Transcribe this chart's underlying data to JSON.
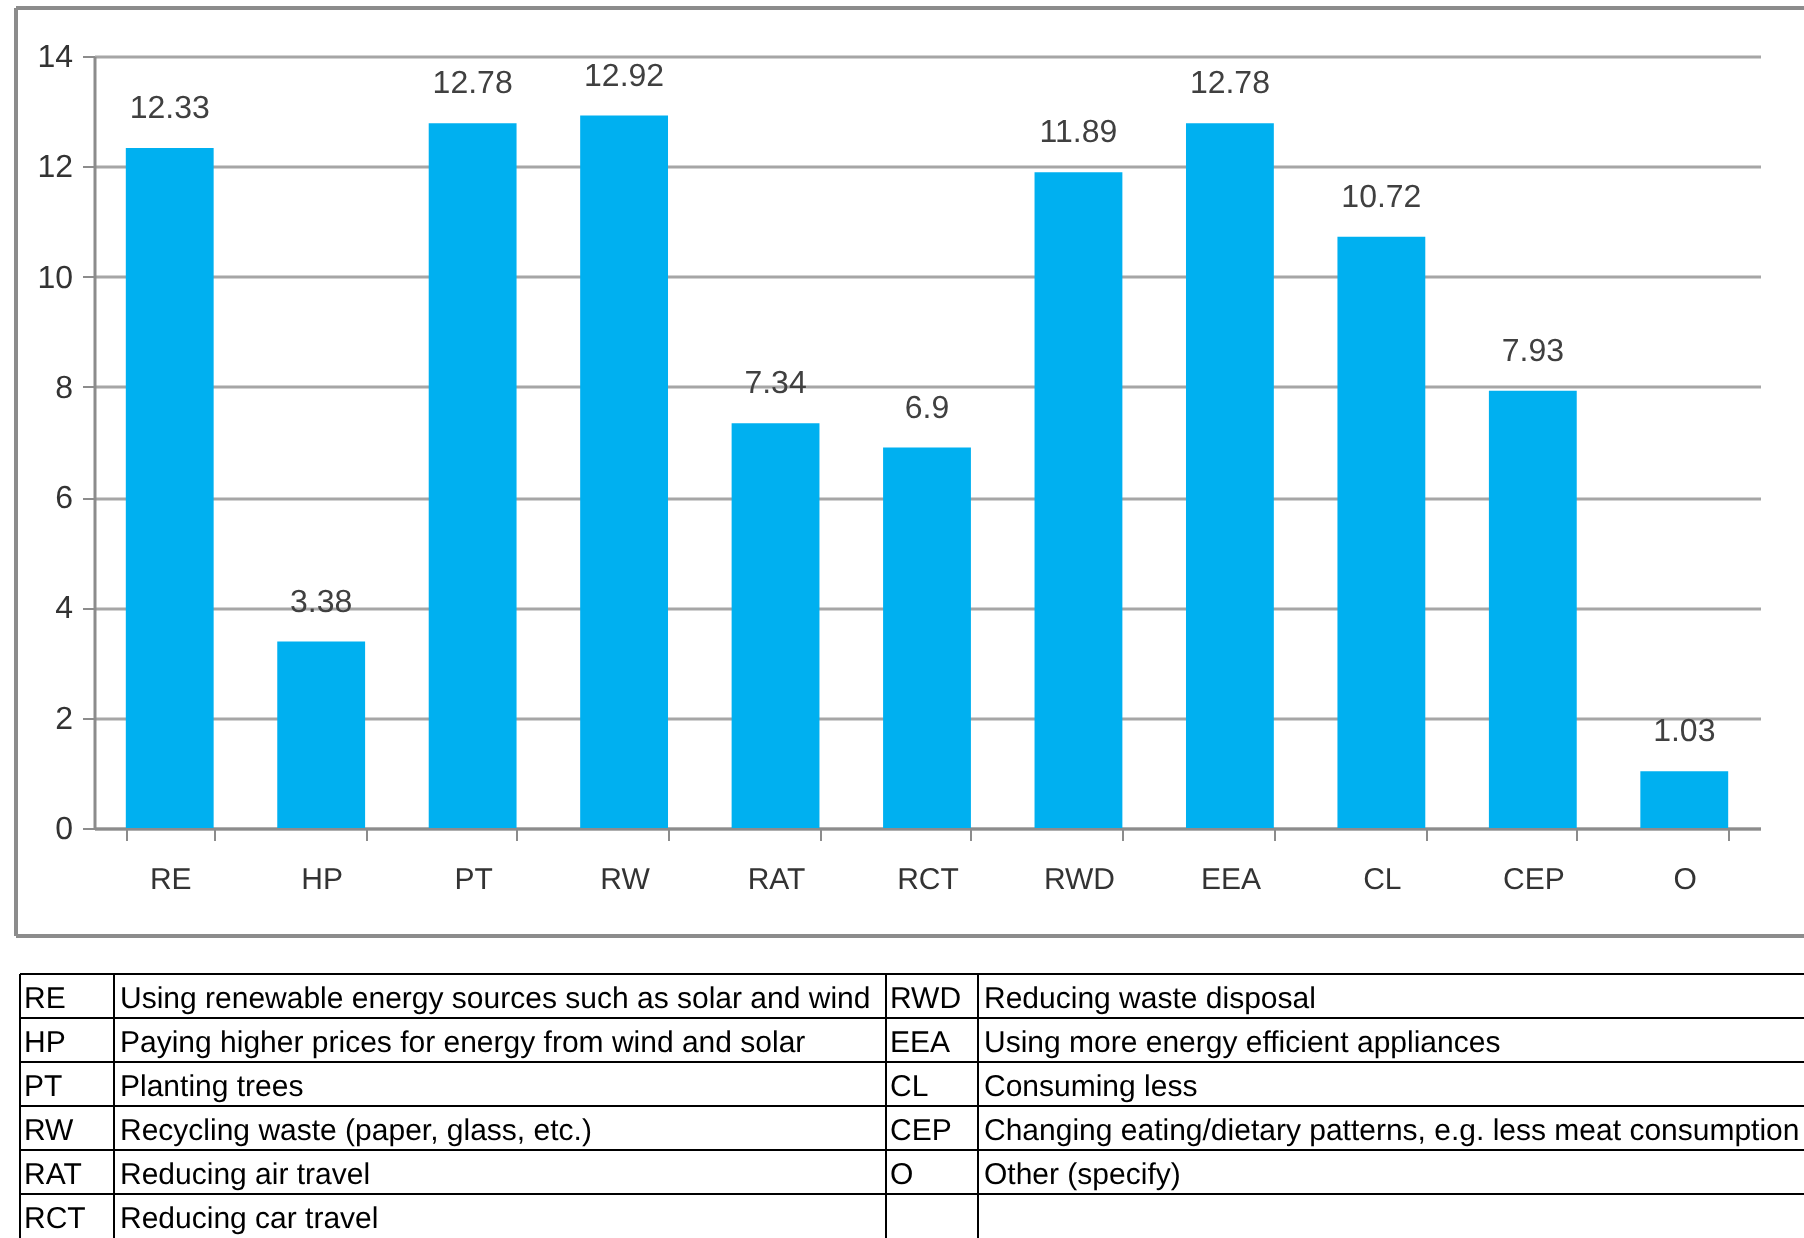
{
  "chart_data": {
    "type": "bar",
    "categories": [
      "RE",
      "HP",
      "PT",
      "RW",
      "RAT",
      "RCT",
      "RWD",
      "EEA",
      "CL",
      "CEP",
      "O"
    ],
    "values": [
      12.33,
      3.38,
      12.78,
      12.92,
      7.34,
      6.9,
      11.89,
      12.78,
      10.72,
      7.93,
      1.03
    ],
    "color": "#00b0f0",
    "ylim": [
      0,
      14
    ],
    "yticks": [
      0,
      2,
      4,
      6,
      8,
      10,
      12,
      14
    ],
    "grid": "y",
    "data_labels": true,
    "annotations": [
      "RE",
      "Using renewable energy sources such as solar and wind",
      "HP",
      "Paying higher prices for energy from wind and solar",
      "PT",
      "Planting trees",
      "RW",
      "Recycling waste (paper, glass, etc.)",
      "RAT",
      "Reducing air travel",
      "RCT",
      "Reducing car travel",
      "RWD",
      "Reducing waste disposal",
      "EEA",
      "Using more energy efficient appliances",
      "CL",
      "Consuming less",
      "CEP",
      "Changing eating/dietary patterns, e.g. less meat consumption",
      "O",
      "Other (specify)"
    ]
  }
}
